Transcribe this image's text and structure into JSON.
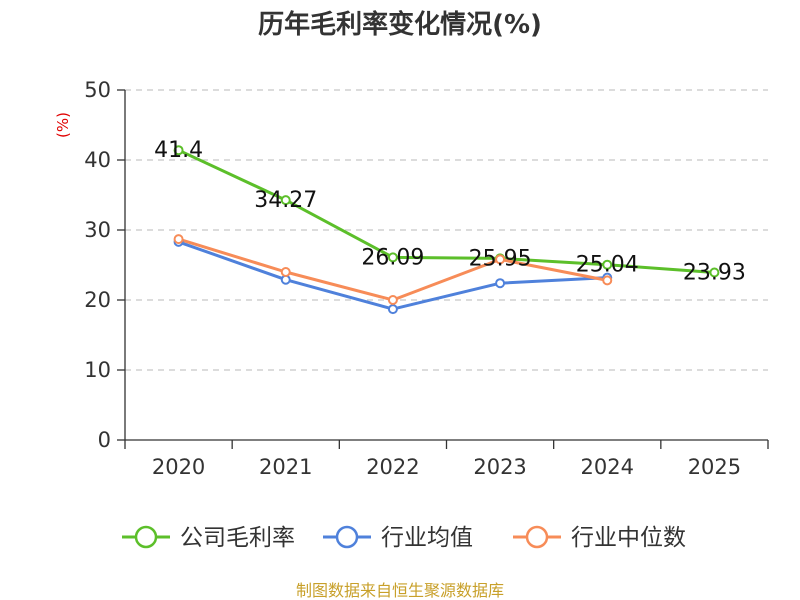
{
  "chart_data": {
    "type": "line",
    "title": "历年毛利率变化情况(%)",
    "ylabel": "(%)",
    "xlabel": "",
    "categories": [
      "2020",
      "2021",
      "2022",
      "2023",
      "2024",
      "2025"
    ],
    "ylim": [
      0,
      50
    ],
    "yticks": [
      0,
      10,
      20,
      30,
      40,
      50
    ],
    "grid": true,
    "legend_position": "bottom",
    "series": [
      {
        "name": "公司毛利率",
        "color": "#5cbf2a",
        "values": [
          41.4,
          34.27,
          26.09,
          25.95,
          25.04,
          23.93
        ],
        "labels": [
          "41.4",
          "34.27",
          "26.09",
          "25.95",
          "25.04",
          "23.93"
        ]
      },
      {
        "name": "行业均值",
        "color": "#4f81db",
        "values": [
          28.3,
          22.9,
          18.7,
          22.4,
          23.2,
          null
        ]
      },
      {
        "name": "行业中位数",
        "color": "#f78c58",
        "values": [
          28.7,
          24.0,
          20.0,
          25.8,
          22.8,
          null
        ]
      }
    ],
    "source": "制图数据来自恒生聚源数据库"
  }
}
